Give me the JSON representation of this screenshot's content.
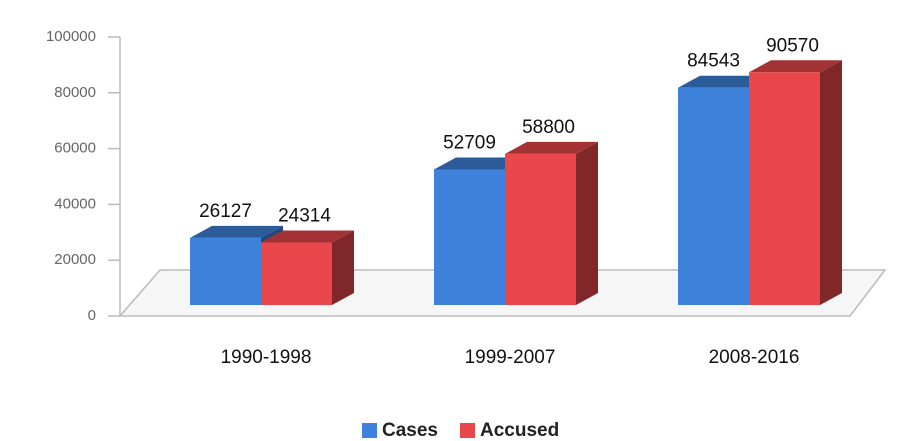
{
  "chart_data": {
    "type": "bar3d",
    "categories": [
      "1990-1998",
      "1999-2007",
      "2008-2016"
    ],
    "series": [
      {
        "name": "Cases",
        "color": "#3f82dc",
        "values": [
          26127,
          52709,
          84543
        ]
      },
      {
        "name": "Accused",
        "color": "#e9474b",
        "values": [
          24314,
          58800,
          90570
        ]
      }
    ],
    "ylim": [
      0,
      100000
    ],
    "yticks": [
      0,
      20000,
      40000,
      60000,
      80000,
      100000
    ],
    "legend": "bottom"
  }
}
